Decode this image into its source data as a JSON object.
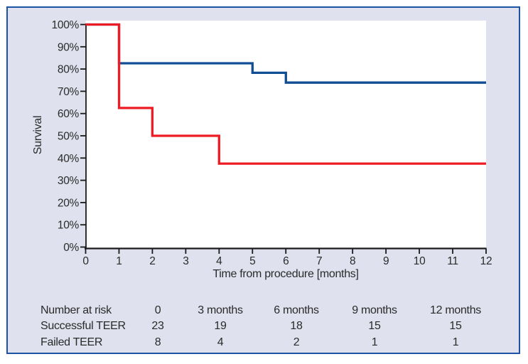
{
  "figure": {
    "background_color": "#dfe2ee",
    "border_color": "#1d53a4",
    "plot_background": "#ffffff",
    "axis_color": "#1a1a1a",
    "text_color": "#2b2a2a"
  },
  "chart_data": {
    "type": "line",
    "subtype": "kaplan-meier-step",
    "title": "",
    "xlabel": "Time from procedure [months]",
    "ylabel": "Survival",
    "xlim": [
      0,
      12
    ],
    "ylim": [
      0,
      100
    ],
    "xticks": [
      0,
      1,
      2,
      3,
      4,
      5,
      6,
      7,
      8,
      9,
      10,
      11,
      12
    ],
    "yticks": [
      0,
      10,
      20,
      30,
      40,
      50,
      60,
      70,
      80,
      90,
      100
    ],
    "ytick_labels": [
      "0%",
      "10%",
      "20%",
      "30%",
      "40%",
      "50%",
      "60%",
      "70%",
      "80%",
      "90%",
      "100%"
    ],
    "grid": false,
    "legend_position": "none",
    "series": [
      {
        "name": "Successful TEER",
        "color": "#114e93",
        "points": [
          [
            0,
            100
          ],
          [
            1,
            100
          ],
          [
            1,
            82.6
          ],
          [
            5,
            82.6
          ],
          [
            5,
            78.3
          ],
          [
            6,
            78.3
          ],
          [
            6,
            73.9
          ],
          [
            12,
            73.9
          ]
        ]
      },
      {
        "name": "Failed TEER",
        "color": "#ed1c24",
        "points": [
          [
            0,
            100
          ],
          [
            1,
            100
          ],
          [
            1,
            62.5
          ],
          [
            2,
            62.5
          ],
          [
            2,
            50
          ],
          [
            4,
            50
          ],
          [
            4,
            37.5
          ],
          [
            12,
            37.5
          ]
        ]
      }
    ]
  },
  "risk_table": {
    "title": "Number at risk",
    "time_labels": [
      "0",
      "3 months",
      "6 months",
      "9 months",
      "12 months"
    ],
    "rows": [
      {
        "label": "Successful TEER",
        "color": "#1d5dab",
        "values": [
          "23",
          "19",
          "18",
          "15",
          "15"
        ]
      },
      {
        "label": "Failed TEER",
        "color": "#ee2e34",
        "values": [
          "8",
          "4",
          "2",
          "1",
          "1"
        ]
      }
    ]
  }
}
